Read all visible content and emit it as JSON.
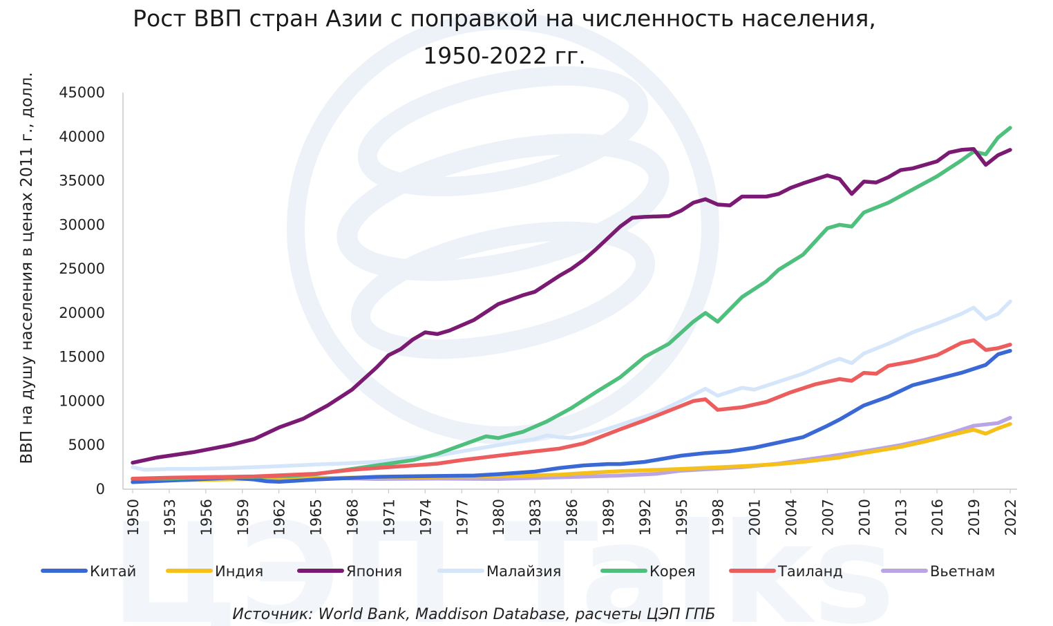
{
  "chart_data": {
    "type": "line",
    "title_line1": "Рост ВВП стран Азии с поправкой на численность населения,",
    "title_line2": "1950-2022 гг.",
    "ylabel": "ВВП на душу населения в ценах 2011 г., долл.",
    "xlabel": "",
    "ylim": [
      0,
      45000
    ],
    "yticks": [
      0,
      5000,
      10000,
      15000,
      20000,
      25000,
      30000,
      35000,
      40000,
      45000
    ],
    "xlim": [
      1950,
      2022
    ],
    "xticks": [
      1950,
      1953,
      1956,
      1959,
      1962,
      1965,
      1968,
      1971,
      1974,
      1977,
      1980,
      1983,
      1986,
      1989,
      1992,
      1995,
      1998,
      2001,
      2004,
      2007,
      2010,
      2013,
      2016,
      2019,
      2022
    ],
    "legend_position": "bottom",
    "grid": false,
    "source": "Источник: World Bank, Maddison Database, расчеты ЦЭП ГПБ",
    "watermark_text": "ЦЭП Talks",
    "series": [
      {
        "name": "Вьетнам",
        "color": "#b9a4e6",
        "points": [
          [
            1950,
            1100
          ],
          [
            1955,
            1150
          ],
          [
            1960,
            1200
          ],
          [
            1965,
            1300
          ],
          [
            1970,
            1150
          ],
          [
            1975,
            1200
          ],
          [
            1980,
            1150
          ],
          [
            1985,
            1350
          ],
          [
            1990,
            1550
          ],
          [
            1993,
            1750
          ],
          [
            1995,
            2100
          ],
          [
            2000,
            2500
          ],
          [
            2003,
            2900
          ],
          [
            2005,
            3300
          ],
          [
            2010,
            4300
          ],
          [
            2013,
            5000
          ],
          [
            2015,
            5600
          ],
          [
            2017,
            6300
          ],
          [
            2019,
            7200
          ],
          [
            2021,
            7500
          ],
          [
            2022,
            8100
          ]
        ]
      },
      {
        "name": "Индия",
        "color": "#f5c01a",
        "points": [
          [
            1950,
            1000
          ],
          [
            1955,
            1050
          ],
          [
            1960,
            1150
          ],
          [
            1965,
            1250
          ],
          [
            1970,
            1350
          ],
          [
            1975,
            1400
          ],
          [
            1980,
            1450
          ],
          [
            1985,
            1650
          ],
          [
            1988,
            1900
          ],
          [
            1990,
            2050
          ],
          [
            1995,
            2300
          ],
          [
            2000,
            2600
          ],
          [
            2003,
            2850
          ],
          [
            2005,
            3100
          ],
          [
            2008,
            3600
          ],
          [
            2010,
            4100
          ],
          [
            2013,
            4800
          ],
          [
            2015,
            5400
          ],
          [
            2017,
            6100
          ],
          [
            2019,
            6750
          ],
          [
            2020,
            6300
          ],
          [
            2021,
            6900
          ],
          [
            2022,
            7400
          ]
        ]
      },
      {
        "name": "Китай",
        "color": "#3a68d4",
        "points": [
          [
            1950,
            800
          ],
          [
            1955,
            1100
          ],
          [
            1958,
            1300
          ],
          [
            1960,
            1100
          ],
          [
            1961,
            900
          ],
          [
            1962,
            850
          ],
          [
            1965,
            1100
          ],
          [
            1970,
            1400
          ],
          [
            1975,
            1500
          ],
          [
            1978,
            1550
          ],
          [
            1980,
            1700
          ],
          [
            1983,
            2000
          ],
          [
            1985,
            2400
          ],
          [
            1987,
            2700
          ],
          [
            1989,
            2850
          ],
          [
            1990,
            2850
          ],
          [
            1992,
            3100
          ],
          [
            1995,
            3800
          ],
          [
            1997,
            4100
          ],
          [
            1999,
            4300
          ],
          [
            2001,
            4700
          ],
          [
            2003,
            5300
          ],
          [
            2005,
            5900
          ],
          [
            2007,
            7200
          ],
          [
            2008,
            7900
          ],
          [
            2010,
            9500
          ],
          [
            2012,
            10500
          ],
          [
            2014,
            11800
          ],
          [
            2016,
            12500
          ],
          [
            2018,
            13200
          ],
          [
            2020,
            14100
          ],
          [
            2021,
            15300
          ],
          [
            2022,
            15700
          ]
        ]
      },
      {
        "name": "Малайзия",
        "color": "#d6e6fa",
        "points": [
          [
            1950,
            2500
          ],
          [
            1951,
            2200
          ],
          [
            1953,
            2300
          ],
          [
            1955,
            2300
          ],
          [
            1958,
            2400
          ],
          [
            1960,
            2500
          ],
          [
            1962,
            2600
          ],
          [
            1965,
            2800
          ],
          [
            1967,
            2900
          ],
          [
            1970,
            3100
          ],
          [
            1973,
            3600
          ],
          [
            1975,
            3800
          ],
          [
            1977,
            4300
          ],
          [
            1980,
            5000
          ],
          [
            1983,
            5700
          ],
          [
            1984,
            6100
          ],
          [
            1985,
            5900
          ],
          [
            1986,
            5800
          ],
          [
            1988,
            6400
          ],
          [
            1990,
            7300
          ],
          [
            1993,
            8700
          ],
          [
            1995,
            10000
          ],
          [
            1997,
            11400
          ],
          [
            1998,
            10600
          ],
          [
            2000,
            11500
          ],
          [
            2001,
            11300
          ],
          [
            2003,
            12200
          ],
          [
            2005,
            13100
          ],
          [
            2007,
            14300
          ],
          [
            2008,
            14800
          ],
          [
            2009,
            14300
          ],
          [
            2010,
            15400
          ],
          [
            2012,
            16500
          ],
          [
            2014,
            17800
          ],
          [
            2016,
            18800
          ],
          [
            2018,
            19900
          ],
          [
            2019,
            20600
          ],
          [
            2020,
            19300
          ],
          [
            2021,
            19900
          ],
          [
            2022,
            21300
          ]
        ]
      },
      {
        "name": "Корея",
        "color": "#4fbf7e",
        "points": [
          [
            1950,
            1200
          ],
          [
            1953,
            1200
          ],
          [
            1955,
            1300
          ],
          [
            1960,
            1400
          ],
          [
            1963,
            1500
          ],
          [
            1965,
            1700
          ],
          [
            1968,
            2300
          ],
          [
            1970,
            2700
          ],
          [
            1973,
            3300
          ],
          [
            1975,
            4000
          ],
          [
            1977,
            5000
          ],
          [
            1979,
            6000
          ],
          [
            1980,
            5800
          ],
          [
            1982,
            6500
          ],
          [
            1984,
            7700
          ],
          [
            1986,
            9200
          ],
          [
            1988,
            11000
          ],
          [
            1990,
            12700
          ],
          [
            1992,
            15000
          ],
          [
            1994,
            16500
          ],
          [
            1996,
            19000
          ],
          [
            1997,
            20000
          ],
          [
            1998,
            19000
          ],
          [
            2000,
            21800
          ],
          [
            2002,
            23600
          ],
          [
            2003,
            24900
          ],
          [
            2005,
            26600
          ],
          [
            2007,
            29600
          ],
          [
            2008,
            30000
          ],
          [
            2009,
            29800
          ],
          [
            2010,
            31400
          ],
          [
            2012,
            32500
          ],
          [
            2014,
            34000
          ],
          [
            2016,
            35500
          ],
          [
            2018,
            37300
          ],
          [
            2019,
            38300
          ],
          [
            2020,
            38000
          ],
          [
            2021,
            39900
          ],
          [
            2022,
            41000
          ]
        ]
      },
      {
        "name": "Таиланд",
        "color": "#ec5e5e",
        "points": [
          [
            1950,
            1200
          ],
          [
            1953,
            1300
          ],
          [
            1955,
            1350
          ],
          [
            1960,
            1450
          ],
          [
            1965,
            1750
          ],
          [
            1968,
            2200
          ],
          [
            1970,
            2400
          ],
          [
            1973,
            2700
          ],
          [
            1975,
            2900
          ],
          [
            1977,
            3300
          ],
          [
            1980,
            3800
          ],
          [
            1983,
            4300
          ],
          [
            1985,
            4600
          ],
          [
            1987,
            5200
          ],
          [
            1990,
            6800
          ],
          [
            1992,
            7800
          ],
          [
            1994,
            8900
          ],
          [
            1996,
            10000
          ],
          [
            1997,
            10200
          ],
          [
            1998,
            9000
          ],
          [
            2000,
            9300
          ],
          [
            2002,
            9900
          ],
          [
            2004,
            11000
          ],
          [
            2006,
            11900
          ],
          [
            2008,
            12500
          ],
          [
            2009,
            12300
          ],
          [
            2010,
            13200
          ],
          [
            2011,
            13100
          ],
          [
            2012,
            14000
          ],
          [
            2014,
            14500
          ],
          [
            2016,
            15200
          ],
          [
            2018,
            16600
          ],
          [
            2019,
            16900
          ],
          [
            2020,
            15800
          ],
          [
            2021,
            16000
          ],
          [
            2022,
            16400
          ]
        ]
      },
      {
        "name": "Япония",
        "color": "#7b1a72",
        "points": [
          [
            1950,
            3000
          ],
          [
            1951,
            3300
          ],
          [
            1952,
            3600
          ],
          [
            1955,
            4200
          ],
          [
            1958,
            5000
          ],
          [
            1960,
            5700
          ],
          [
            1962,
            7000
          ],
          [
            1964,
            8000
          ],
          [
            1966,
            9500
          ],
          [
            1968,
            11300
          ],
          [
            1970,
            13800
          ],
          [
            1971,
            15200
          ],
          [
            1972,
            15900
          ],
          [
            1973,
            17000
          ],
          [
            1974,
            17800
          ],
          [
            1975,
            17600
          ],
          [
            1976,
            18000
          ],
          [
            1978,
            19200
          ],
          [
            1980,
            21000
          ],
          [
            1982,
            22000
          ],
          [
            1983,
            22400
          ],
          [
            1985,
            24200
          ],
          [
            1986,
            25000
          ],
          [
            1987,
            26000
          ],
          [
            1988,
            27200
          ],
          [
            1990,
            29800
          ],
          [
            1991,
            30800
          ],
          [
            1992,
            30900
          ],
          [
            1994,
            31000
          ],
          [
            1995,
            31600
          ],
          [
            1996,
            32500
          ],
          [
            1997,
            32900
          ],
          [
            1998,
            32300
          ],
          [
            1999,
            32200
          ],
          [
            2000,
            33200
          ],
          [
            2002,
            33200
          ],
          [
            2003,
            33500
          ],
          [
            2004,
            34200
          ],
          [
            2005,
            34700
          ],
          [
            2007,
            35600
          ],
          [
            2008,
            35200
          ],
          [
            2009,
            33500
          ],
          [
            2010,
            34900
          ],
          [
            2011,
            34800
          ],
          [
            2012,
            35400
          ],
          [
            2013,
            36200
          ],
          [
            2014,
            36400
          ],
          [
            2016,
            37200
          ],
          [
            2017,
            38200
          ],
          [
            2018,
            38500
          ],
          [
            2019,
            38600
          ],
          [
            2020,
            36800
          ],
          [
            2021,
            37900
          ],
          [
            2022,
            38500
          ]
        ]
      }
    ],
    "legend_order": [
      "Китай",
      "Индия",
      "Япония",
      "Малайзия",
      "Корея",
      "Таиланд",
      "Вьетнам"
    ]
  },
  "watermark": {
    "color": "#dfe8f5"
  }
}
